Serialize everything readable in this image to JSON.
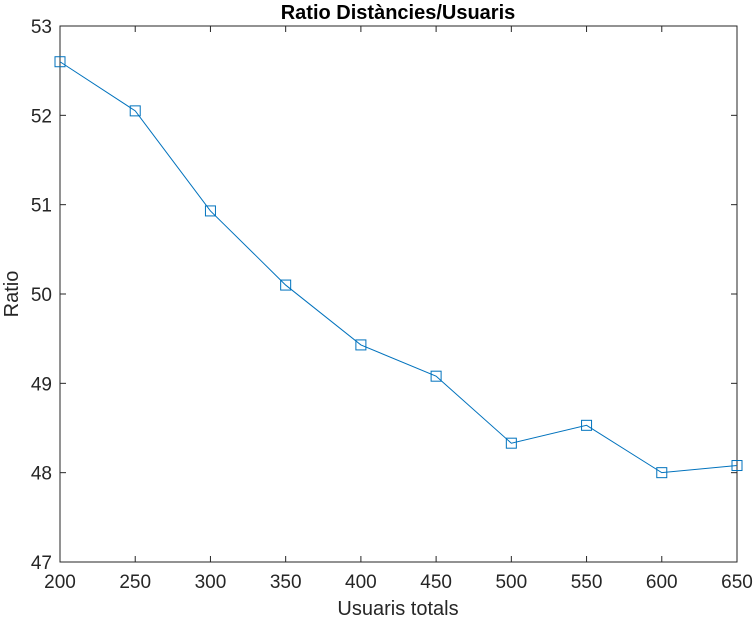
{
  "chart_data": {
    "type": "line",
    "title": "Ratio Distàncies/Usuaris",
    "xlabel": "Usuaris totals",
    "ylabel": "Ratio",
    "x": [
      200,
      250,
      300,
      350,
      400,
      450,
      500,
      550,
      600,
      650
    ],
    "series": [
      {
        "name": "",
        "values": [
          52.6,
          52.05,
          50.93,
          50.1,
          49.43,
          49.08,
          48.33,
          48.53,
          48.0,
          48.08
        ],
        "color": "#0072BD",
        "marker": "square"
      }
    ],
    "xlim": [
      200,
      650
    ],
    "ylim": [
      47,
      53
    ],
    "xticks": [
      200,
      250,
      300,
      350,
      400,
      450,
      500,
      550,
      600,
      650
    ],
    "yticks": [
      47,
      48,
      49,
      50,
      51,
      52,
      53
    ],
    "grid": false,
    "box": true
  }
}
